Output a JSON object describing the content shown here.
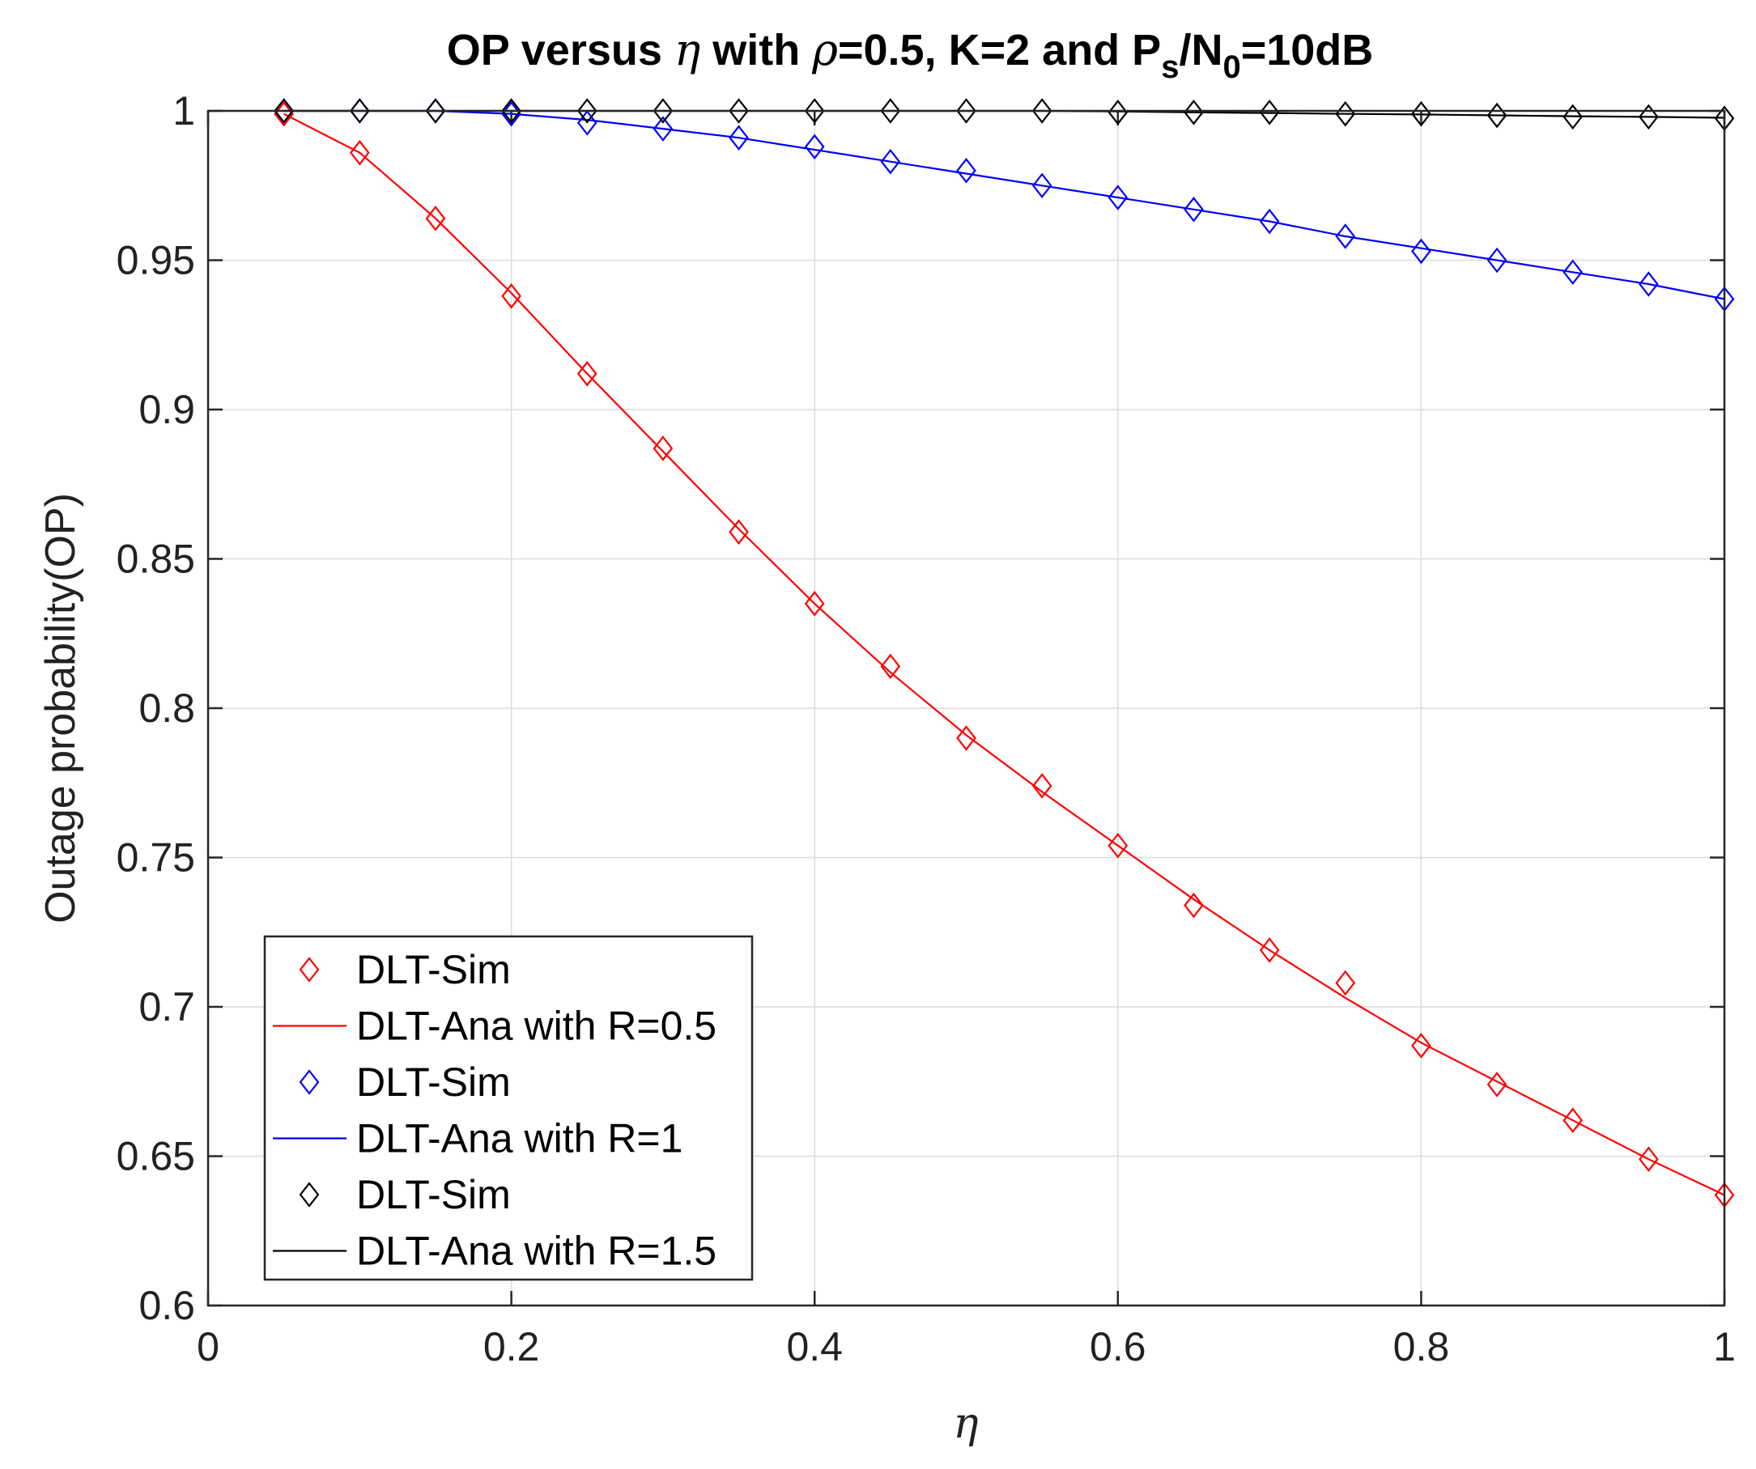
{
  "chart_data": {
    "type": "line",
    "title": {
      "prefix": "OP versus ",
      "eta": "η",
      "mid1": " with ",
      "rho": "ρ",
      "mid2": "=0.5, K=2 and P",
      "sub_s": "s",
      "slash": "/N",
      "sub_0": "0",
      "suffix": "=10dB"
    },
    "xlabel": "η",
    "ylabel": "Outage probability(OP)",
    "xlim": [
      0,
      1
    ],
    "ylim": [
      0.6,
      1
    ],
    "xticks": [
      0,
      0.2,
      0.4,
      0.6,
      0.8,
      1
    ],
    "xtick_labels": [
      "0",
      "0.2",
      "0.4",
      "0.6",
      "0.8",
      "1"
    ],
    "yticks": [
      0.6,
      0.65,
      0.7,
      0.75,
      0.8,
      0.85,
      0.9,
      0.95,
      1
    ],
    "ytick_labels": [
      "0.6",
      "0.65",
      "0.7",
      "0.75",
      "0.8",
      "0.85",
      "0.9",
      "0.95",
      "1"
    ],
    "grid": true,
    "legend_position": "bottom-left",
    "x": [
      0.05,
      0.1,
      0.15,
      0.2,
      0.25,
      0.3,
      0.35,
      0.4,
      0.45,
      0.5,
      0.55,
      0.6,
      0.65,
      0.7,
      0.75,
      0.8,
      0.85,
      0.9,
      0.95,
      1.0
    ],
    "series": [
      {
        "id": "r05",
        "color": "#ff0000",
        "sim_label": "DLT-Sim",
        "ana_label": "DLT-Ana with R=0.5",
        "sim_values": [
          0.999,
          0.986,
          0.964,
          0.938,
          0.912,
          0.887,
          0.859,
          0.835,
          0.814,
          0.79,
          0.774,
          0.754,
          0.734,
          0.719,
          0.708,
          0.687,
          0.674,
          0.662,
          0.649,
          0.637
        ],
        "ana_values": [
          0.999,
          0.986,
          0.964,
          0.939,
          0.912,
          0.886,
          0.86,
          0.835,
          0.812,
          0.791,
          0.772,
          0.754,
          0.736,
          0.719,
          0.703,
          0.688,
          0.675,
          0.662,
          0.649,
          0.637
        ]
      },
      {
        "id": "r1",
        "color": "#0000ff",
        "sim_label": "DLT-Sim",
        "ana_label": "DLT-Ana with R=1",
        "sim_values": [
          1.0,
          1.0,
          1.0,
          0.999,
          0.996,
          0.994,
          0.991,
          0.988,
          0.983,
          0.98,
          0.975,
          0.971,
          0.967,
          0.963,
          0.958,
          0.953,
          0.95,
          0.946,
          0.942,
          0.937
        ],
        "ana_values": [
          1.0,
          1.0,
          1.0,
          0.999,
          0.997,
          0.994,
          0.991,
          0.987,
          0.983,
          0.979,
          0.975,
          0.971,
          0.967,
          0.963,
          0.958,
          0.954,
          0.95,
          0.946,
          0.942,
          0.937
        ]
      },
      {
        "id": "r15",
        "color": "#000000",
        "sim_label": "DLT-Sim",
        "ana_label": "DLT-Ana with R=1.5",
        "sim_values": [
          1.0,
          1.0,
          1.0,
          1.0,
          1.0,
          1.0,
          1.0,
          1.0,
          1.0,
          1.0,
          1.0,
          0.9995,
          0.9995,
          0.9995,
          0.999,
          0.999,
          0.9985,
          0.998,
          0.998,
          0.9975
        ],
        "ana_values": [
          1.0,
          1.0,
          1.0,
          1.0,
          1.0,
          1.0,
          1.0,
          1.0,
          1.0,
          1.0,
          1.0,
          0.9998,
          0.9995,
          0.9993,
          0.999,
          0.9988,
          0.9985,
          0.9982,
          0.998,
          0.9977
        ]
      }
    ]
  }
}
